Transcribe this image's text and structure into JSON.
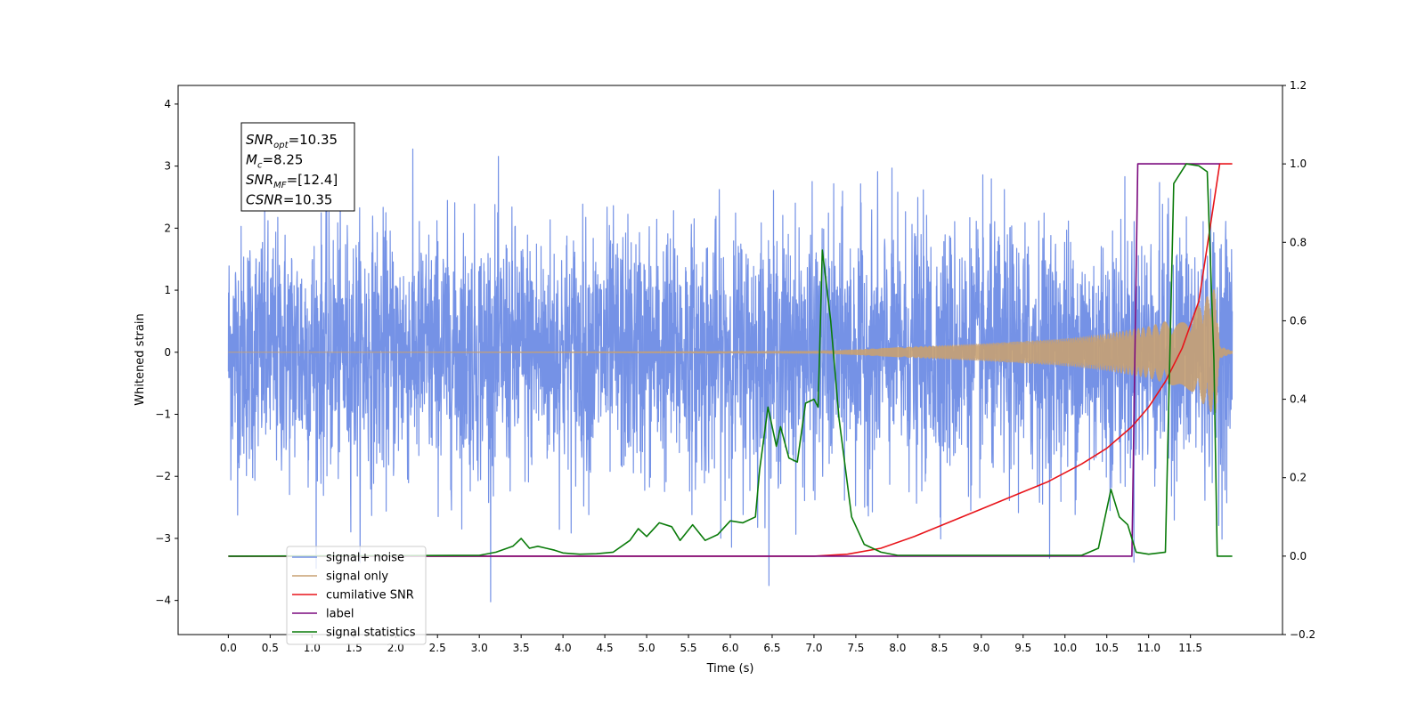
{
  "chart_data": {
    "type": "line",
    "xlabel": "Time (s)",
    "ylabel": "Whitened strain",
    "xlim": [
      -0.6,
      12.6
    ],
    "ylim": [
      -4.55,
      4.3
    ],
    "y2lim": [
      -0.2,
      1.2
    ],
    "x_ticks": [
      "0.0",
      "0.5",
      "1.0",
      "1.5",
      "2.0",
      "2.5",
      "3.0",
      "3.5",
      "4.0",
      "4.5",
      "5.0",
      "5.5",
      "6.0",
      "6.5",
      "7.0",
      "7.5",
      "8.0",
      "8.5",
      "9.0",
      "9.5",
      "10.0",
      "10.5",
      "11.0",
      "11.5"
    ],
    "y_ticks": [
      "4",
      "3",
      "2",
      "1",
      "0",
      "−1",
      "−2",
      "−3",
      "−4"
    ],
    "y2_ticks": [
      "1.2",
      "1.0",
      "0.8",
      "0.6",
      "0.4",
      "0.2",
      "0.0",
      "−0.2"
    ],
    "grid": false,
    "legend_position": "lower-left",
    "annotation": {
      "lines": [
        {
          "base": "SNR",
          "sub": "opt",
          "rest": "=10.35"
        },
        {
          "base": "M",
          "sub": "c",
          "rest": "=8.25"
        },
        {
          "base": "SNR",
          "sub": "MF",
          "rest": "=[12.4]"
        },
        {
          "base": "CSNR",
          "sub": "",
          "rest": "=10.35"
        }
      ]
    },
    "series": [
      {
        "name": "signal+ noise",
        "color": "#7592e6",
        "axis": "left",
        "kind": "noise",
        "x_range": [
          0.0,
          12.0
        ],
        "std": 1.0,
        "range": [
          -4.1,
          3.9
        ]
      },
      {
        "name": "signal only",
        "color": "#c8a172",
        "axis": "left",
        "kind": "chirp",
        "x_range": [
          0.0,
          12.0
        ],
        "envelope": [
          [
            0.0,
            0.0
          ],
          [
            7.0,
            0.01
          ],
          [
            8.0,
            0.08
          ],
          [
            9.0,
            0.14
          ],
          [
            10.0,
            0.22
          ],
          [
            10.5,
            0.3
          ],
          [
            11.0,
            0.42
          ],
          [
            11.5,
            0.62
          ],
          [
            11.8,
            1.05
          ],
          [
            11.85,
            0.1
          ],
          [
            12.0,
            0.02
          ]
        ]
      },
      {
        "name": "cumilative SNR",
        "color": "#e8141a",
        "axis": "right",
        "points": [
          [
            0.0,
            0.0
          ],
          [
            7.0,
            0.0
          ],
          [
            7.4,
            0.005
          ],
          [
            7.8,
            0.02
          ],
          [
            8.2,
            0.05
          ],
          [
            8.6,
            0.085
          ],
          [
            9.0,
            0.12
          ],
          [
            9.4,
            0.155
          ],
          [
            9.8,
            0.19
          ],
          [
            10.2,
            0.235
          ],
          [
            10.5,
            0.275
          ],
          [
            10.8,
            0.33
          ],
          [
            11.0,
            0.38
          ],
          [
            11.2,
            0.445
          ],
          [
            11.4,
            0.53
          ],
          [
            11.6,
            0.65
          ],
          [
            11.75,
            0.86
          ],
          [
            11.85,
            1.0
          ],
          [
            12.0,
            1.0
          ]
        ]
      },
      {
        "name": "label",
        "color": "#7b0a7e",
        "axis": "right",
        "points": [
          [
            0.0,
            0.0
          ],
          [
            10.8,
            0.0
          ],
          [
            10.87,
            1.0
          ],
          [
            11.85,
            1.0
          ]
        ]
      },
      {
        "name": "signal statistics",
        "color": "#0a7b0a",
        "axis": "right",
        "points": [
          [
            0.0,
            0.0
          ],
          [
            3.0,
            0.002
          ],
          [
            3.2,
            0.01
          ],
          [
            3.4,
            0.025
          ],
          [
            3.5,
            0.045
          ],
          [
            3.6,
            0.02
          ],
          [
            3.7,
            0.025
          ],
          [
            3.8,
            0.02
          ],
          [
            3.9,
            0.015
          ],
          [
            4.0,
            0.008
          ],
          [
            4.2,
            0.005
          ],
          [
            4.4,
            0.006
          ],
          [
            4.6,
            0.01
          ],
          [
            4.8,
            0.04
          ],
          [
            4.9,
            0.07
          ],
          [
            5.0,
            0.05
          ],
          [
            5.15,
            0.085
          ],
          [
            5.3,
            0.075
          ],
          [
            5.4,
            0.04
          ],
          [
            5.55,
            0.08
          ],
          [
            5.7,
            0.04
          ],
          [
            5.85,
            0.055
          ],
          [
            6.0,
            0.09
          ],
          [
            6.15,
            0.085
          ],
          [
            6.3,
            0.1
          ],
          [
            6.35,
            0.22
          ],
          [
            6.45,
            0.38
          ],
          [
            6.55,
            0.28
          ],
          [
            6.6,
            0.33
          ],
          [
            6.7,
            0.25
          ],
          [
            6.8,
            0.24
          ],
          [
            6.9,
            0.39
          ],
          [
            7.0,
            0.4
          ],
          [
            7.05,
            0.38
          ],
          [
            7.1,
            0.78
          ],
          [
            7.2,
            0.6
          ],
          [
            7.3,
            0.35
          ],
          [
            7.45,
            0.1
          ],
          [
            7.6,
            0.03
          ],
          [
            7.8,
            0.01
          ],
          [
            8.0,
            0.002
          ],
          [
            10.2,
            0.002
          ],
          [
            10.4,
            0.02
          ],
          [
            10.55,
            0.17
          ],
          [
            10.65,
            0.1
          ],
          [
            10.75,
            0.08
          ],
          [
            10.85,
            0.01
          ],
          [
            11.0,
            0.005
          ],
          [
            11.2,
            0.01
          ],
          [
            11.3,
            0.95
          ],
          [
            11.45,
            1.0
          ],
          [
            11.6,
            0.995
          ],
          [
            11.7,
            0.98
          ],
          [
            11.78,
            0.5
          ],
          [
            11.82,
            0.0
          ],
          [
            12.0,
            0.0
          ]
        ]
      }
    ]
  }
}
